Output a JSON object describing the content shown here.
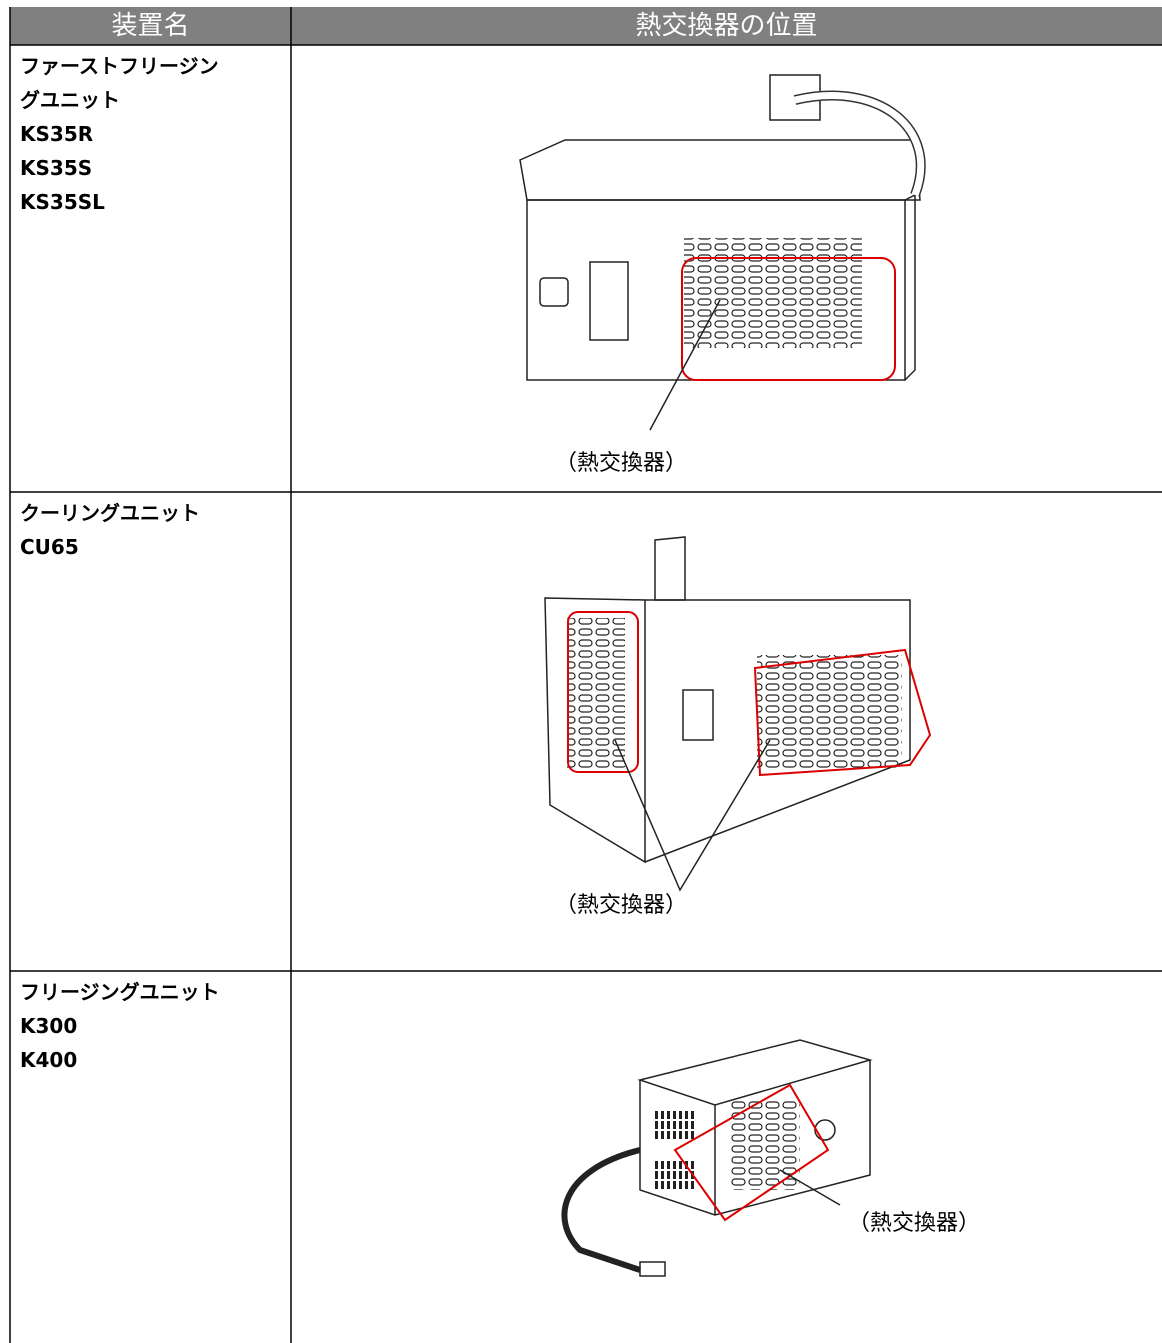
{
  "table": {
    "header": [
      "装置名",
      "熱交換器の位置"
    ],
    "rows": [
      {
        "name_lines": [
          "ファーストフリージン",
          "グユニット",
          "KS35R",
          "KS35S",
          "KS35SL"
        ],
        "callout": "（熱交換器）"
      },
      {
        "name_lines": [
          "クーリングユニット",
          "CU65"
        ],
        "callout": "（熱交換器）"
      },
      {
        "name_lines": [
          "フリージングユニット",
          "K300",
          "K400"
        ],
        "callout": "（熱交換器）"
      }
    ]
  }
}
